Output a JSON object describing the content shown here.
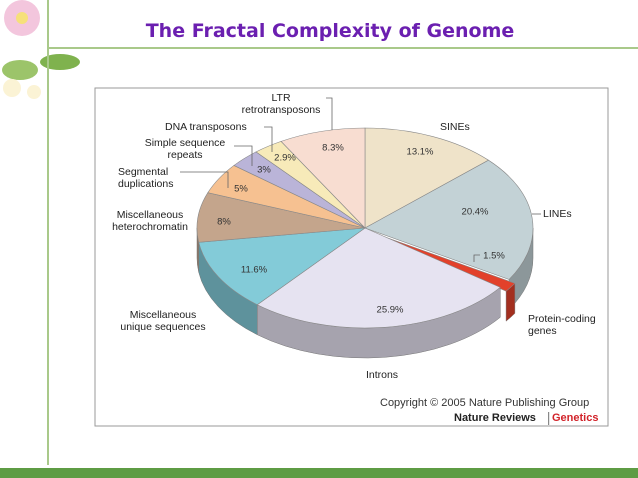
{
  "title": "The Fractal Complexity of Genome",
  "chart_data": {
    "type": "pie",
    "categories": [
      "SINEs",
      "LINEs",
      "Protein-coding\ngenes",
      "Introns",
      "Miscellaneous\nunique sequences",
      "Miscellaneous\nheterochromatin",
      "Segmental\nduplications",
      "Simple sequence\nrepeats",
      "DNA transposons",
      "LTR\nretrotransposons"
    ],
    "values": [
      13.1,
      20.4,
      1.5,
      25.9,
      11.6,
      8,
      5,
      3,
      2.9,
      8.3
    ],
    "value_labels": [
      "13.1%",
      "20.4%",
      "1.5%",
      "25.9%",
      "11.6%",
      "8%",
      "5%",
      "3%",
      "2.9%",
      "8.3%"
    ],
    "colors": [
      "#efe3c9",
      "#c3d2d6",
      "#e2412b",
      "#e6e3f1",
      "#83cbd8",
      "#c4a58c",
      "#f6c191",
      "#bab4d8",
      "#f7eab9",
      "#f8ddd1"
    ],
    "source": "Copyright © 2005 Nature Publishing Group",
    "publisher": "Nature Reviews",
    "journal": "Genetics"
  }
}
